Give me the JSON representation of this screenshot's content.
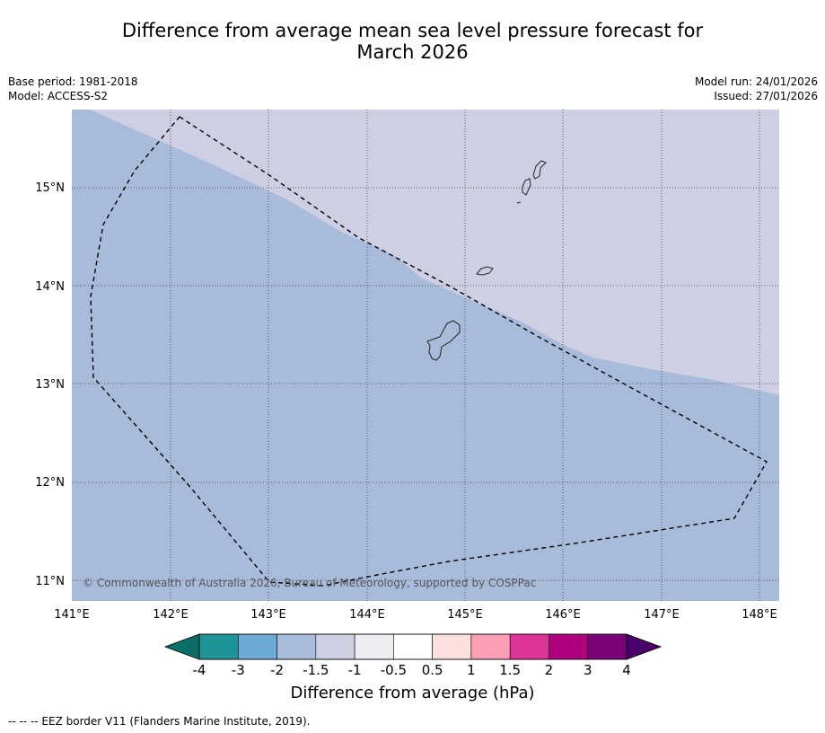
{
  "title": {
    "line1": "Difference from average mean sea level pressure forecast for",
    "line2": "March 2026"
  },
  "meta_left": {
    "base_period": "Base period: 1981-2018",
    "model": "Model: ACCESS-S2"
  },
  "meta_right": {
    "model_run": "Model run: 24/01/2026",
    "issued": "Issued: 27/01/2026"
  },
  "map": {
    "lat_labels": [
      "15°N",
      "14°N",
      "13°N",
      "12°N",
      "11°N"
    ],
    "lon_labels": [
      "141°E",
      "142°E",
      "143°E",
      "144°E",
      "145°E",
      "146°E",
      "147°E",
      "148°E"
    ],
    "copyright": "© Commonwealth of Australia 2026, Bureau of Meteorology, supported by COSPPac",
    "regions": [
      {
        "name": "-2 to -1.5 hPa",
        "color": "#a9bbdb"
      },
      {
        "name": "-1.5 to -1 hPa",
        "color": "#cfcfe4"
      }
    ]
  },
  "colorbar": {
    "ticks": [
      "-4",
      "-3",
      "-2",
      "-1.5",
      "-1",
      "-0.5",
      "0.5",
      "1",
      "1.5",
      "2",
      "3",
      "4"
    ],
    "colors": [
      "#1f9497",
      "#6aaad4",
      "#a9bbdb",
      "#cfcfe4",
      "#ececf1",
      "#ffffff",
      "#fde0dd",
      "#fa9fb5",
      "#dd3497",
      "#ae017e",
      "#7a0177"
    ],
    "low_extend_color": "#0b6e66",
    "high_extend_color": "#49006a",
    "label": "Difference from average (hPa)"
  },
  "legend": {
    "text": "--  --  -- EEZ border V11 (Flanders Marine Institute, 2019)."
  }
}
